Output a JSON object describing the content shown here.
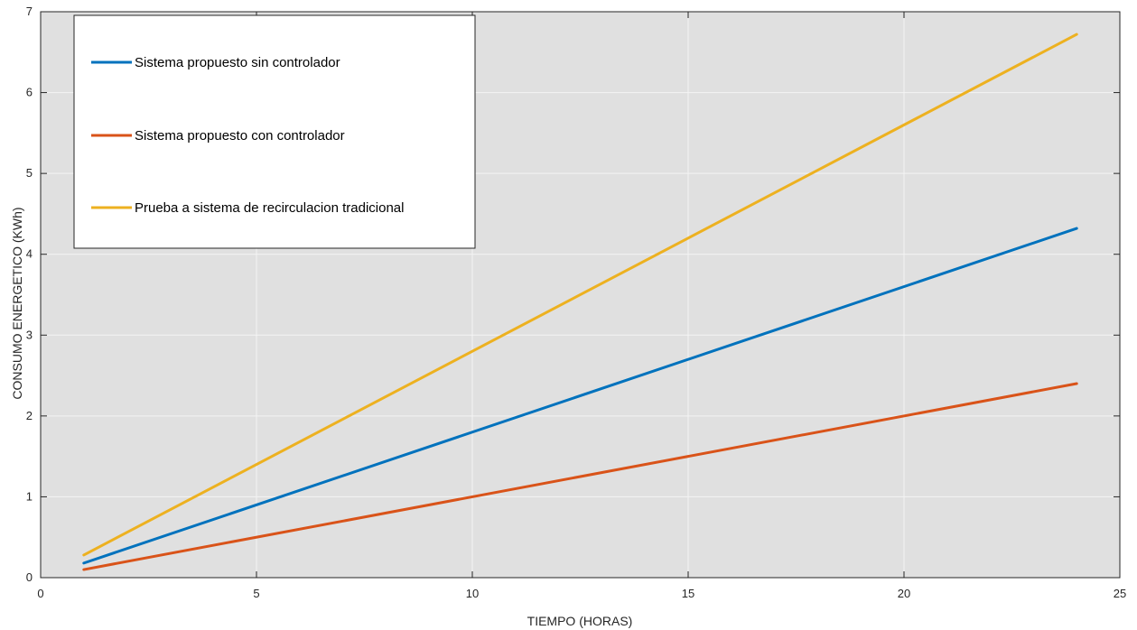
{
  "chart_data": {
    "type": "line",
    "title": "",
    "xlabel": "TIEMPO (HORAS)",
    "ylabel": "CONSUMO ENERGETICO (KWh)",
    "xlim": [
      0,
      25
    ],
    "ylim": [
      0,
      7
    ],
    "xticks": [
      0,
      5,
      10,
      15,
      20,
      25
    ],
    "yticks": [
      0,
      1,
      2,
      3,
      4,
      5,
      6,
      7
    ],
    "grid": true,
    "legend_position": "top-left",
    "background": "#e0e0e0",
    "series": [
      {
        "name": "Sistema propuesto sin controlador",
        "color": "#0072bd",
        "x": [
          1,
          24
        ],
        "y": [
          0.18,
          4.32
        ]
      },
      {
        "name": "Sistema propuesto con controlador",
        "color": "#d95319",
        "x": [
          1,
          24
        ],
        "y": [
          0.1,
          2.4
        ]
      },
      {
        "name": "Prueba a sistema de recirculacion tradicional",
        "color": "#edb120",
        "x": [
          1,
          24
        ],
        "y": [
          0.28,
          6.72
        ]
      }
    ]
  }
}
